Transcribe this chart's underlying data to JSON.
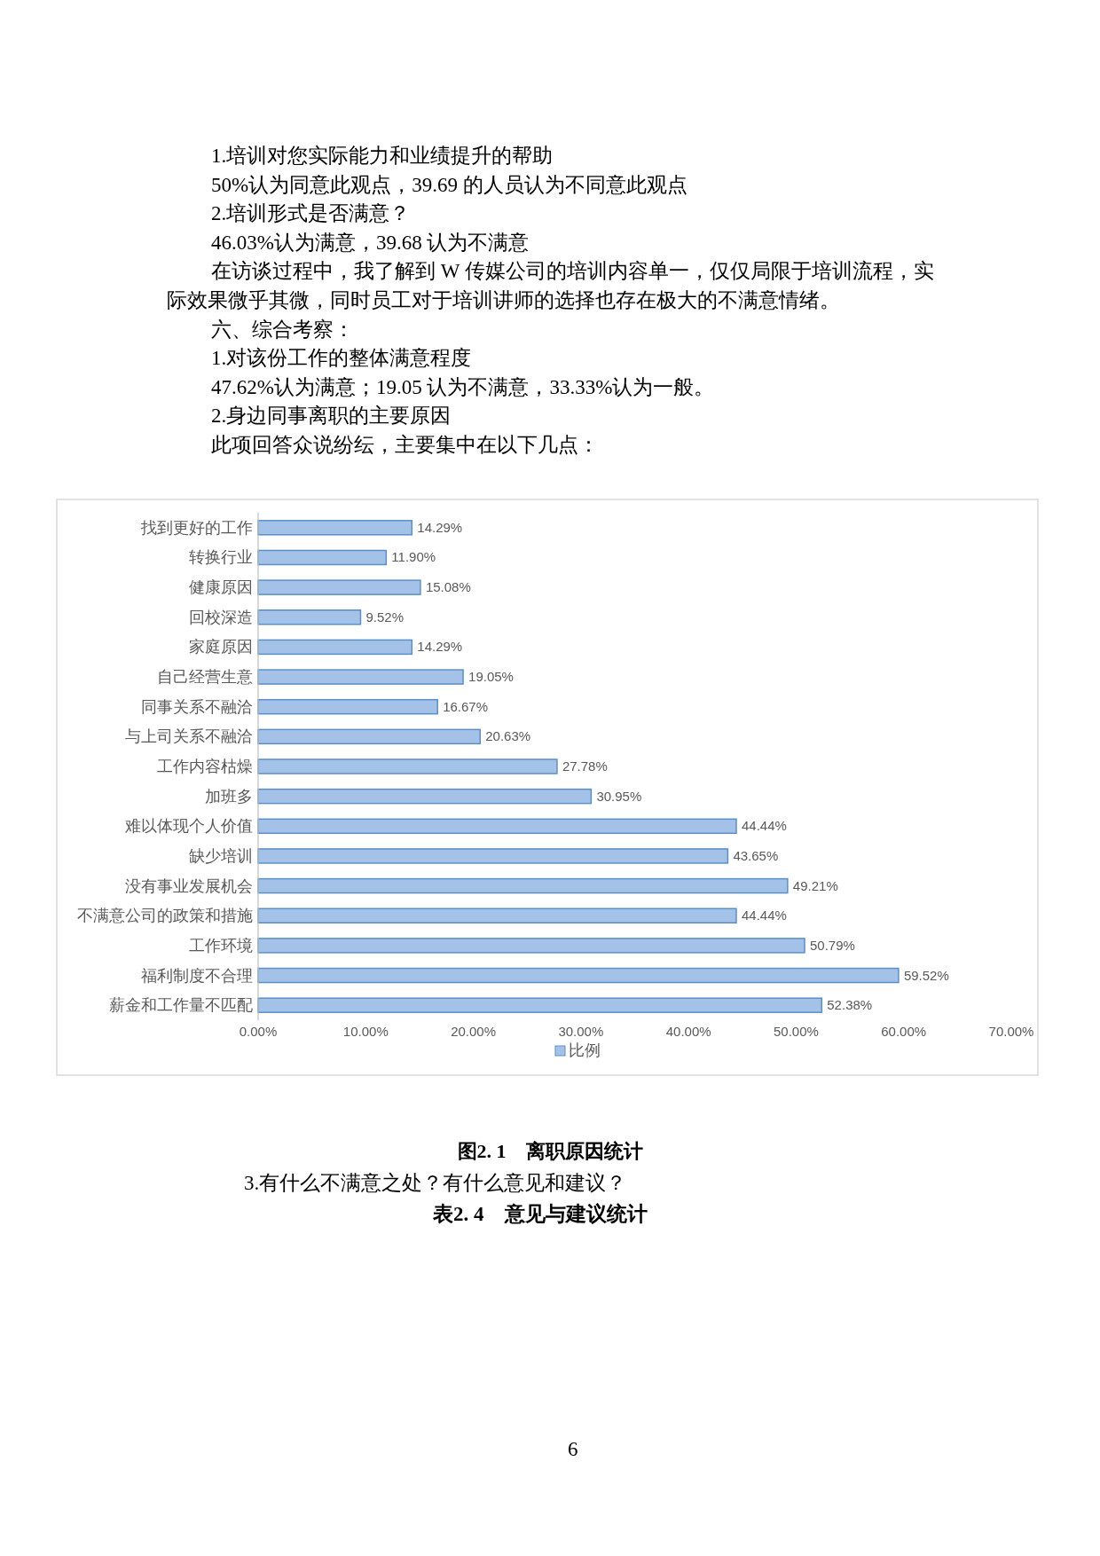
{
  "chart_data": {
    "type": "bar",
    "orientation": "horizontal",
    "title": "图2. 1　离职原因统计",
    "categories": [
      "找到更好的工作",
      "转换行业",
      "健康原因",
      "回校深造",
      "家庭原因",
      "自己经营生意",
      "同事关系不融洽",
      "与上司关系不融洽",
      "工作内容枯燥",
      "加班多",
      "难以体现个人价值",
      "缺少培训",
      "没有事业发展机会",
      "不满意公司的政策和措施",
      "工作环境",
      "福利制度不合理",
      "薪金和工作量不匹配"
    ],
    "series": [
      {
        "name": "比例",
        "color": "#a4c2e8",
        "values": [
          14.29,
          11.9,
          15.08,
          9.52,
          14.29,
          19.05,
          16.67,
          20.63,
          27.78,
          30.95,
          44.44,
          43.65,
          49.21,
          44.44,
          50.79,
          59.52,
          52.38
        ],
        "value_labels": [
          "14.29%",
          "11.90%",
          "15.08%",
          "9.52%",
          "14.29%",
          "19.05%",
          "16.67%",
          "20.63%",
          "27.78%",
          "30.95%",
          "44.44%",
          "43.65%",
          "49.21%",
          "44.44%",
          "50.79%",
          "59.52%",
          "52.38%"
        ]
      }
    ],
    "xlim": [
      0,
      70
    ],
    "xticks": [
      {
        "value": 0,
        "label": "0.00%"
      },
      {
        "value": 10,
        "label": "10.00%"
      },
      {
        "value": 20,
        "label": "20.00%"
      },
      {
        "value": 30,
        "label": "30.00%"
      },
      {
        "value": 40,
        "label": "40.00%"
      },
      {
        "value": 50,
        "label": "50.00%"
      },
      {
        "value": 60,
        "label": "60.00%"
      },
      {
        "value": 70,
        "label": "70.00%"
      }
    ],
    "legend": "bottom",
    "annotations": [
      "1.培训对您实际能力和业绩提升的帮助",
      "50%认为同意此观点，39.69 的人员认为不同意此观点",
      "2.培训形式是否满意？",
      "46.03%认为满意，39.68 认为不满意",
      "在访谈过程中，我了解到 W 传媒公司的培训内容单一，仅仅局限于培训流程，实际效果微乎其微，同时员工对于培训讲师的选择也存在极大的不满意情绪。",
      "六、综合考察：",
      "1.对该份工作的整体满意程度",
      "47.62%认为满意；19.05 认为不满意，33.33%认为一般。",
      "2.身边同事离职的主要原因",
      "此项回答众说纷纭，主要集中在以下几点：",
      "3.有什么不满意之处？有什么意见和建议？",
      "表2. 4　意见与建议统计",
      "6"
    ]
  }
}
